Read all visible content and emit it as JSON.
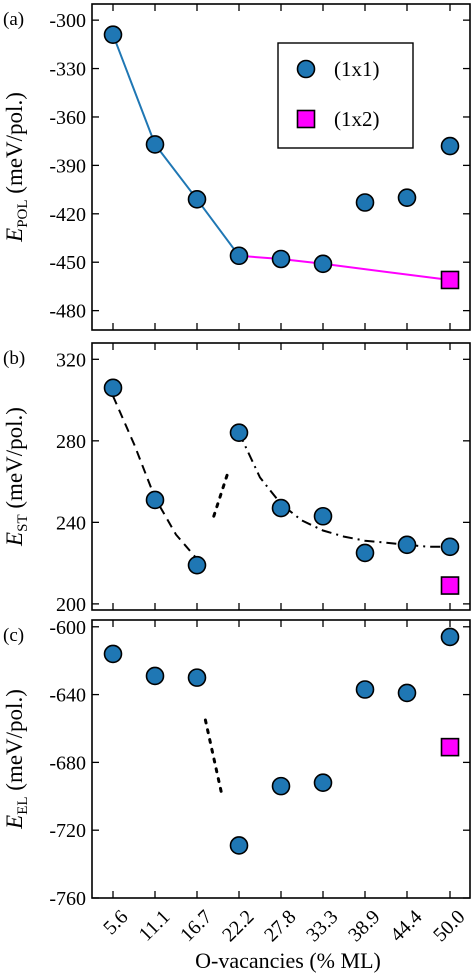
{
  "x_ticks": [
    "5.6",
    "11.1",
    "16.7",
    "22.2",
    "27.8",
    "33.3",
    "38.9",
    "44.4",
    "50.0"
  ],
  "xlabel": "O-vacancies (% ML)",
  "colors": {
    "circle_fill": "#1f77b4",
    "square_fill": "#ff00ff",
    "line_1x1": "#1f77b4",
    "line_1x2": "#ff00ff"
  },
  "chart_data": [
    {
      "type": "scatter",
      "panel": "(a)",
      "ylabel": {
        "main": "E",
        "sub": "POL",
        "rest": " (meV/pol.)"
      },
      "ylim": [
        -492,
        -290
      ],
      "yticks": [
        -300,
        -330,
        -360,
        -390,
        -420,
        -450,
        -480
      ],
      "legend": {
        "placement": "top-right",
        "entries": [
          "(1x1)",
          "(1x2)"
        ]
      },
      "series": [
        {
          "name": "(1x1)",
          "marker": "circle",
          "x": [
            5.6,
            11.1,
            16.7,
            22.2,
            27.8,
            33.3,
            38.9,
            44.4,
            50.0
          ],
          "values": [
            -309,
            -377,
            -411,
            -446,
            -448,
            -451,
            -413,
            -410,
            -378
          ]
        },
        {
          "name": "(1x2)",
          "marker": "square",
          "x": [
            50.0
          ],
          "values": [
            -461
          ]
        }
      ],
      "lines": [
        {
          "style": "solid",
          "color": "line_1x1",
          "x": [
            5.6,
            11.1,
            16.7,
            22.2
          ],
          "values": [
            -309,
            -377,
            -411,
            -446
          ]
        },
        {
          "style": "solid",
          "color": "line_1x2",
          "x": [
            22.2,
            27.8,
            33.3,
            50.0
          ],
          "values": [
            -446,
            -448,
            -451,
            -461
          ]
        }
      ]
    },
    {
      "type": "scatter",
      "panel": "(b)",
      "ylabel": {
        "main": "E",
        "sub": "ST",
        "rest": " (meV/pol.)"
      },
      "ylim": [
        197,
        328
      ],
      "yticks": [
        200,
        240,
        280,
        320
      ],
      "series": [
        {
          "marker": "circle",
          "x": [
            5.6,
            11.1,
            16.7,
            22.2,
            27.8,
            33.3,
            38.9,
            44.4,
            50.0
          ],
          "values": [
            306,
            251,
            219,
            284,
            247,
            243,
            225,
            229,
            228
          ]
        },
        {
          "marker": "square",
          "x": [
            50.0
          ],
          "values": [
            209
          ]
        }
      ],
      "lines": [
        {
          "style": "dashed",
          "x": [
            5.6,
            8.4,
            11.1,
            13.9,
            16.7
          ],
          "values": [
            302,
            278,
            252,
            234,
            222
          ]
        },
        {
          "style": "dotted",
          "x": [
            18.9,
            20.8
          ],
          "values": [
            243,
            265
          ]
        },
        {
          "style": "dashdot",
          "x": [
            22.2,
            25.0,
            27.8,
            30.5,
            33.3,
            36.1,
            38.9,
            41.7,
            44.4,
            47.2,
            50.0
          ],
          "values": [
            284,
            262,
            249,
            241,
            236,
            233,
            231,
            230,
            229,
            228,
            228
          ]
        }
      ]
    },
    {
      "type": "scatter",
      "panel": "(c)",
      "ylabel": {
        "main": "E",
        "sub": "EL",
        "rest": " (meV/pol.)"
      },
      "ylim": [
        -760,
        -596
      ],
      "yticks": [
        -600,
        -640,
        -680,
        -720,
        -760
      ],
      "series": [
        {
          "marker": "circle",
          "x": [
            5.6,
            11.1,
            16.7,
            22.2,
            27.8,
            33.3,
            38.9,
            44.4,
            50.0
          ],
          "values": [
            -616,
            -629,
            -630,
            -729,
            -694,
            -692,
            -637,
            -639,
            -606
          ]
        },
        {
          "marker": "square",
          "x": [
            50.0
          ],
          "values": [
            -671
          ]
        }
      ],
      "lines": [
        {
          "style": "dotted",
          "x": [
            17.8,
            20.0
          ],
          "values": [
            -655,
            -700
          ]
        }
      ]
    }
  ]
}
